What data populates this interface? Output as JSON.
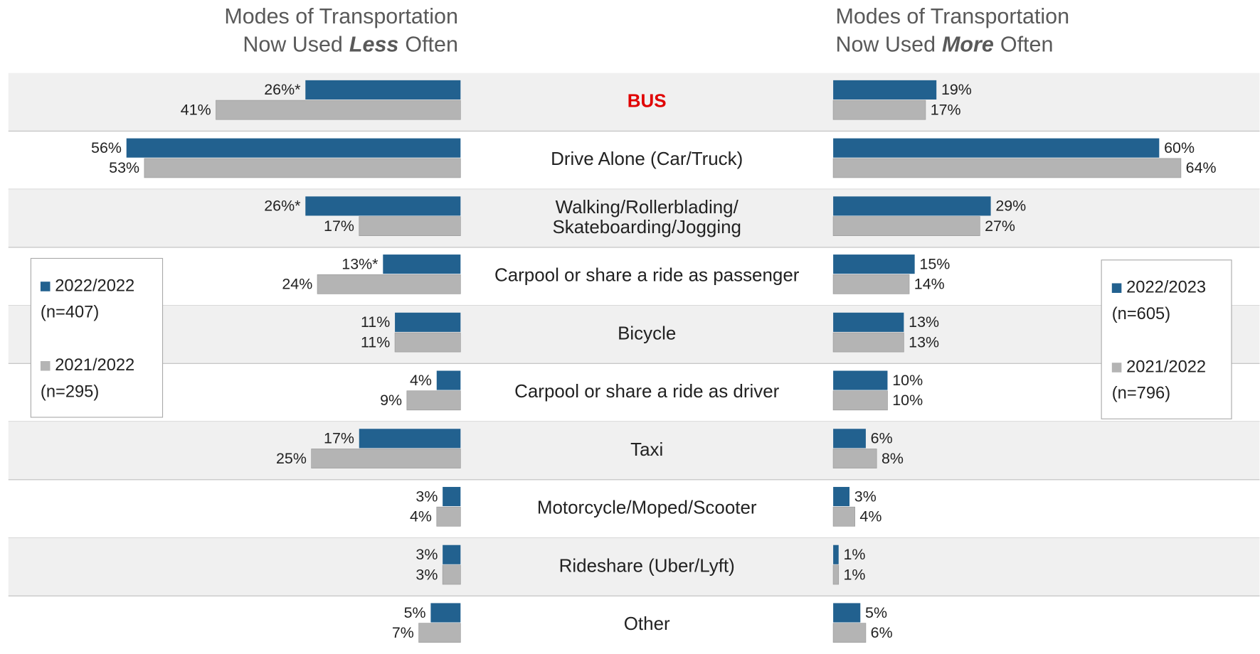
{
  "chart_data": {
    "type": "butterfly",
    "categories": [
      [
        "BUS"
      ],
      [
        "Drive Alone (Car/Truck)"
      ],
      [
        "Walking/Rollerblading/",
        "Skateboarding/Jogging"
      ],
      [
        "Carpool or share a ride as passenger"
      ],
      [
        "Bicycle"
      ],
      [
        "Carpool or share a ride as driver"
      ],
      [
        "Taxi"
      ],
      [
        "Motorcycle/Moped/Scooter"
      ],
      [
        "Rideshare (Uber/Lyft)"
      ],
      [
        "Other"
      ]
    ],
    "highlight_category": 0,
    "highlight_color": "#e00000",
    "band_color": "#f0f0f0",
    "left": {
      "title_line1": "Modes of Transportation",
      "title_prefix": "Now Used",
      "title_emphasis": "Less",
      "title_suffix": "Often",
      "series": [
        {
          "name": "2022/2022",
          "sample": "(n=407)",
          "color": "#22618f",
          "values": [
            26,
            56,
            26,
            13,
            11,
            4,
            17,
            3,
            3,
            5
          ],
          "value_labels": [
            "26%*",
            "56%",
            "26%*",
            "13%*",
            "11%",
            "4%",
            "17%",
            "3%",
            "3%",
            "5%"
          ]
        },
        {
          "name": "2021/2022",
          "sample": "(n=295)",
          "color": "#b4b4b4",
          "values": [
            41,
            53,
            17,
            24,
            11,
            9,
            25,
            4,
            3,
            7
          ],
          "value_labels": [
            "41%",
            "53%",
            "17%",
            "24%",
            "11%",
            "9%",
            "25%",
            "4%",
            "3%",
            "7%"
          ]
        }
      ]
    },
    "right": {
      "title_line1": "Modes of Transportation",
      "title_prefix": "Now Used",
      "title_emphasis": "More",
      "title_suffix": "Often",
      "series": [
        {
          "name": "2022/2023",
          "sample": "(n=605)",
          "color": "#22618f",
          "values": [
            19,
            60,
            29,
            15,
            13,
            10,
            6,
            3,
            1,
            5
          ],
          "value_labels": [
            "19%",
            "60%",
            "29%",
            "15%",
            "13%",
            "10%",
            "6%",
            "3%",
            "1%",
            "5%"
          ]
        },
        {
          "name": "2021/2022",
          "sample": "(n=796)",
          "color": "#b4b4b4",
          "values": [
            17,
            64,
            27,
            14,
            13,
            10,
            8,
            4,
            1,
            6
          ],
          "value_labels": [
            "17%",
            "64%",
            "27%",
            "14%",
            "13%",
            "10%",
            "8%",
            "4%",
            "1%",
            "6%"
          ]
        }
      ]
    }
  }
}
